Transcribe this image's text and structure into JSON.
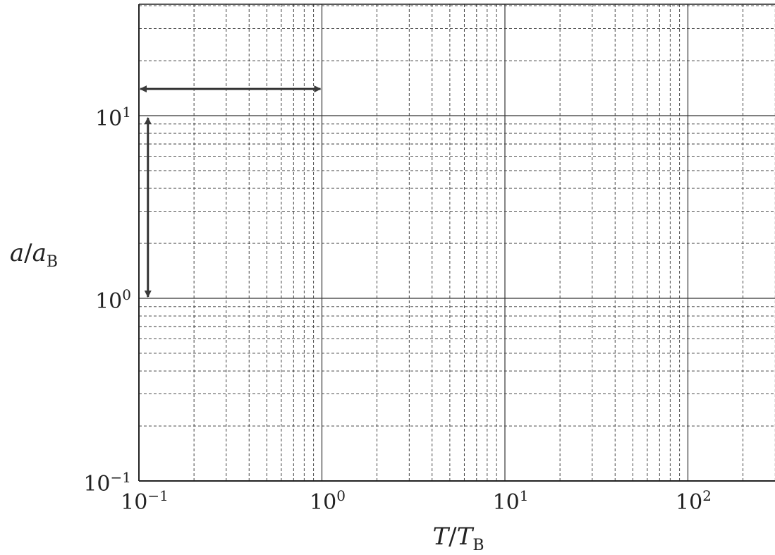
{
  "chart_data": {
    "type": "line",
    "title": "",
    "xscale": "log",
    "yscale": "log",
    "xlim": [
      0.1,
      300
    ],
    "ylim": [
      0.1,
      40
    ],
    "xlabel": {
      "base": "T",
      "sub": "B",
      "sep": "/"
    },
    "ylabel": {
      "base": "a",
      "sub": "B",
      "sep": "/"
    },
    "x_ticks": [
      {
        "value": 0.1,
        "base": "10",
        "exp": "−1"
      },
      {
        "value": 1,
        "base": "10",
        "exp": "0"
      },
      {
        "value": 10,
        "base": "10",
        "exp": "1"
      },
      {
        "value": 100,
        "base": "10",
        "exp": "2"
      }
    ],
    "y_ticks": [
      {
        "value": 0.1,
        "base": "10",
        "exp": "−1"
      },
      {
        "value": 1,
        "base": "10",
        "exp": "0"
      },
      {
        "value": 10,
        "base": "10",
        "exp": "1"
      }
    ],
    "grid": {
      "major": "solid",
      "minor": "dashed"
    },
    "series": [],
    "annotations": [
      {
        "type": "double-arrow",
        "orientation": "horizontal",
        "x": [
          0.1,
          1
        ],
        "y": 14
      },
      {
        "type": "double-arrow",
        "orientation": "vertical",
        "x": 0.112,
        "y": [
          1,
          10
        ]
      }
    ],
    "colors": {
      "axis": "#222222",
      "grid": "#333333",
      "arrow": "#333333"
    }
  }
}
